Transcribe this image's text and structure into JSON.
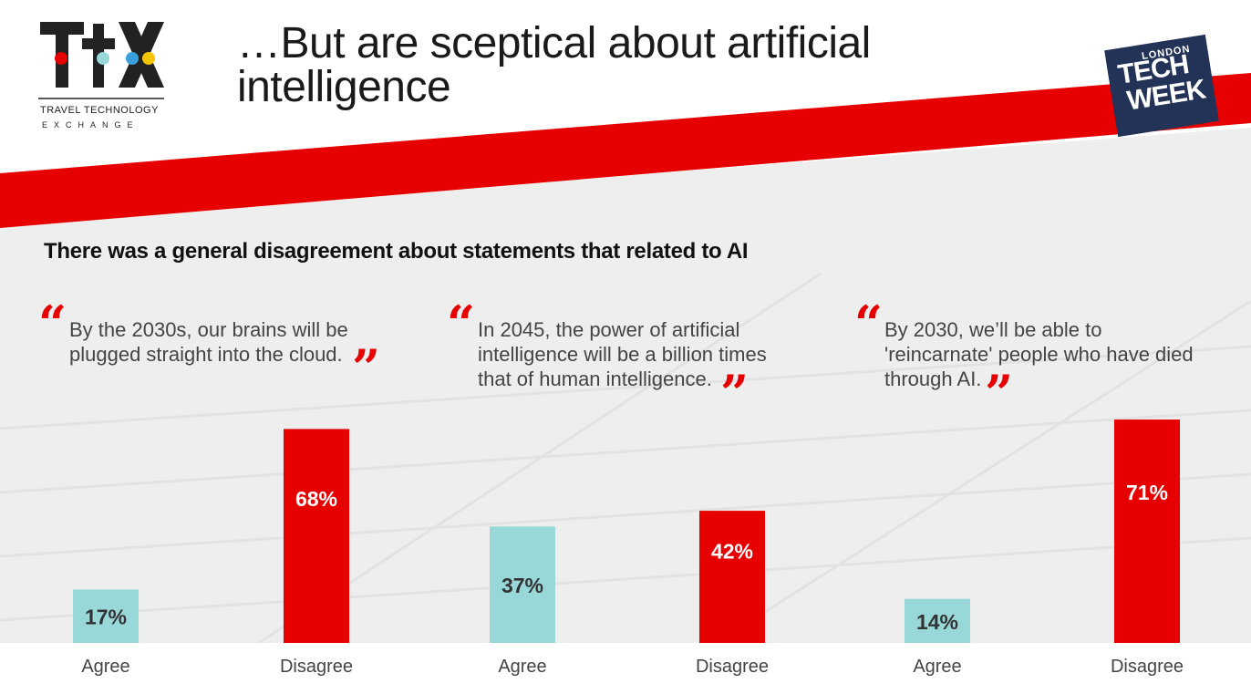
{
  "slide": {
    "title": "…But are sceptical about artificial intelligence",
    "subtitle": "There was a general disagreement about statements that related to AI",
    "colors": {
      "agree": "#99d8d9",
      "disagree": "#e60000",
      "stripe": "#e60000",
      "badge": "#233257",
      "quote_mark": "#e60000"
    }
  },
  "logo": {
    "mark": "TtX",
    "line1": "TRAVEL TECHNOLOGY",
    "line2": "EXCHANGE"
  },
  "badge": {
    "small": "LONDON",
    "big1": "TECH",
    "big2": "WEEK"
  },
  "quotes": [
    {
      "line1": "By the 2030s, our brains will be",
      "line2": "plugged straight into the cloud.",
      "line3": ""
    },
    {
      "line1": "In 2045, the power of artificial",
      "line2": "intelligence will be a billion times",
      "line3": "that of human intelligence."
    },
    {
      "line1": "By 2030, we’ll be able to",
      "line2": "'reincarnate' people who have died",
      "line3": "through AI."
    }
  ],
  "chart_data": [
    {
      "type": "bar",
      "title": "By the 2030s, our brains will be plugged straight into the cloud.",
      "categories": [
        "Agree",
        "Disagree"
      ],
      "values": [
        17,
        68
      ],
      "labels": [
        "17%",
        "68%"
      ],
      "ylim": [
        0,
        75
      ],
      "colors": [
        "#99d8d9",
        "#e60000"
      ]
    },
    {
      "type": "bar",
      "title": "In 2045, the power of artificial intelligence will be a billion times that of human intelligence.",
      "categories": [
        "Agree",
        "Disagree"
      ],
      "values": [
        37,
        42
      ],
      "labels": [
        "37%",
        "42%"
      ],
      "ylim": [
        0,
        75
      ],
      "colors": [
        "#99d8d9",
        "#e60000"
      ]
    },
    {
      "type": "bar",
      "title": "By 2030, we’ll be able to 'reincarnate' people who have died through AI.",
      "categories": [
        "Agree",
        "Disagree"
      ],
      "values": [
        14,
        71
      ],
      "labels": [
        "14%",
        "71%"
      ],
      "ylim": [
        0,
        75
      ],
      "colors": [
        "#99d8d9",
        "#e60000"
      ]
    }
  ]
}
